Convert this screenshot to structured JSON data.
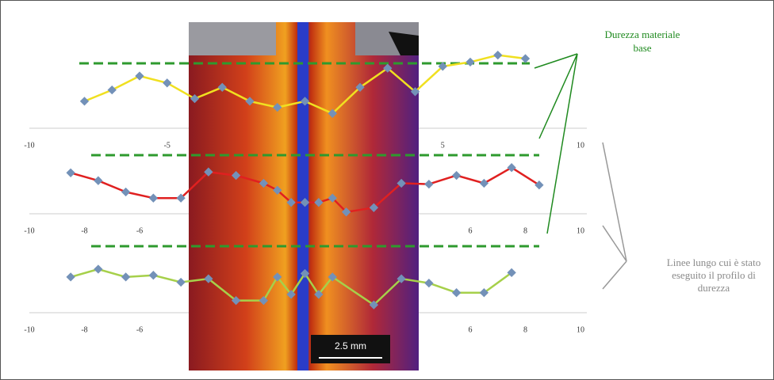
{
  "chart_data": [
    {
      "type": "line",
      "x": [
        -8,
        -7,
        -6,
        -5,
        -4,
        -3,
        -2,
        -1,
        0,
        1,
        2,
        3,
        4,
        5,
        6,
        7,
        8
      ],
      "series": [
        {
          "color": "#f0e020",
          "values": [
            3.1,
            4.4,
            6.0,
            5.2,
            3.4,
            4.7,
            3.1,
            2.4,
            3.1,
            1.7,
            4.7,
            6.9,
            4.2,
            7.1,
            7.6,
            8.4,
            8.0
          ]
        }
      ],
      "marker_color": "#7391b8",
      "xlim": [
        -10,
        10
      ],
      "xticks": [
        -10,
        -5,
        5,
        10
      ],
      "ylim": [
        0,
        10
      ]
    },
    {
      "type": "line",
      "x": [
        -8.5,
        -7.5,
        -6.5,
        -5.5,
        -4.5,
        -3.5,
        -2.5,
        -1.5,
        -1,
        -0.5,
        0,
        0.5,
        1,
        1.5,
        2.5,
        3.5,
        4.5,
        5.5,
        6.5,
        7.5,
        8.5
      ],
      "series": [
        {
          "color": "#e02020",
          "values": [
            4.7,
            3.8,
            2.5,
            1.8,
            1.8,
            4.8,
            4.4,
            3.5,
            2.7,
            1.3,
            1.3,
            1.3,
            1.8,
            0.2,
            0.7,
            3.5,
            3.4,
            4.4,
            3.5,
            5.3,
            3.3
          ]
        }
      ],
      "marker_color": "#7391b8",
      "xlim": [
        -10,
        10
      ],
      "xticks": [
        -10,
        -8,
        -6,
        6,
        8,
        10
      ],
      "ylim": [
        0,
        10
      ]
    },
    {
      "type": "line",
      "x": [
        -8.5,
        -7.5,
        -6.5,
        -5.5,
        -4.5,
        -3.5,
        -2.5,
        -1.5,
        -1,
        -0.5,
        0,
        0.5,
        1,
        2.5,
        3.5,
        4.5,
        5.5,
        6.5,
        7.5
      ],
      "series": [
        {
          "color": "#a6d04a",
          "values": [
            4.1,
            5.0,
            4.1,
            4.3,
            3.5,
            3.9,
            1.4,
            1.4,
            4.1,
            2.1,
            4.5,
            2.1,
            4.1,
            0.9,
            3.9,
            3.4,
            2.3,
            2.3,
            4.6
          ]
        }
      ],
      "marker_color": "#7391b8",
      "xlim": [
        -10,
        10
      ],
      "xticks": [
        -10,
        -8,
        -6,
        6,
        8,
        10
      ],
      "ylim": [
        0,
        10
      ]
    }
  ],
  "annotations": {
    "base_hardness": [
      "Durezza materiale",
      "base"
    ],
    "profile_lines": [
      "Linee lungo cui è stato",
      "eseguito il profilo di",
      "durezza"
    ],
    "scale_bar": "2.5 mm"
  }
}
